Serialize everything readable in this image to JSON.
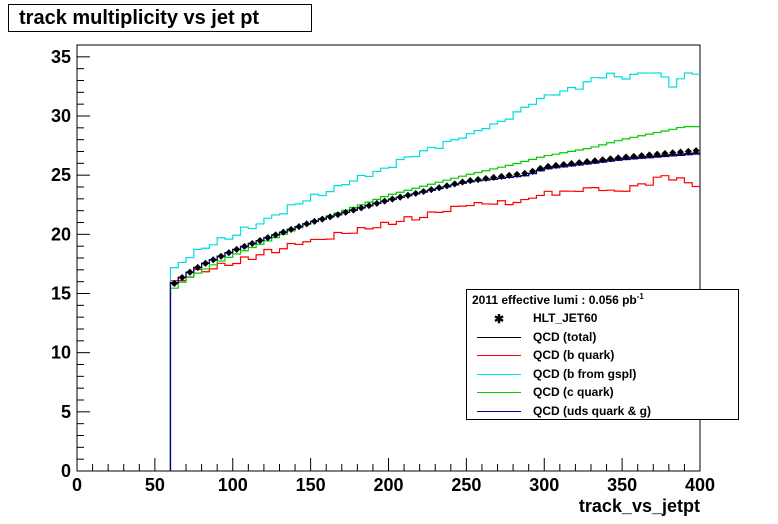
{
  "title": "track multiplicity vs jet pt",
  "chart_data": {
    "type": "line",
    "xlabel": "track_vs_jetpt",
    "xlim": [
      0,
      400
    ],
    "ylim": [
      0,
      36
    ],
    "x_ticks": [
      0,
      50,
      100,
      150,
      200,
      250,
      300,
      350,
      400
    ],
    "y_ticks": [
      0,
      5,
      10,
      15,
      20,
      25,
      30,
      35
    ],
    "bin_width": 5,
    "bin_start": 60,
    "legend": {
      "header": "2011 effective lumi : 0.056  pb",
      "header_sup": "-1",
      "position": "bottom-right"
    },
    "series": [
      {
        "name": "HLT_JET60",
        "style": "marker",
        "color": "#000000",
        "anchors": [
          [
            60,
            15.6
          ],
          [
            70,
            16.6
          ],
          [
            80,
            17.4
          ],
          [
            90,
            18.0
          ],
          [
            100,
            18.6
          ],
          [
            120,
            19.6
          ],
          [
            150,
            21.0
          ],
          [
            200,
            22.9
          ],
          [
            250,
            24.5
          ],
          [
            290,
            25.2
          ],
          [
            300,
            25.7
          ],
          [
            350,
            26.5
          ],
          [
            400,
            27.1
          ]
        ]
      },
      {
        "name": "QCD (total)",
        "style": "line",
        "color": "#000000",
        "anchors": [
          [
            60,
            15.6
          ],
          [
            70,
            16.6
          ],
          [
            80,
            17.4
          ],
          [
            90,
            18.0
          ],
          [
            100,
            18.6
          ],
          [
            120,
            19.6
          ],
          [
            150,
            21.0
          ],
          [
            200,
            22.9
          ],
          [
            250,
            24.4
          ],
          [
            290,
            25.0
          ],
          [
            300,
            25.6
          ],
          [
            350,
            26.4
          ],
          [
            400,
            26.9
          ]
        ]
      },
      {
        "name": "QCD (b quark)",
        "style": "line",
        "color": "#ff0000",
        "anchors": [
          [
            60,
            15.8
          ],
          [
            70,
            16.6
          ],
          [
            80,
            17.1
          ],
          [
            100,
            17.8
          ],
          [
            120,
            18.5
          ],
          [
            150,
            19.6
          ],
          [
            200,
            21.0
          ],
          [
            250,
            22.6
          ],
          [
            270,
            22.9
          ],
          [
            280,
            22.6
          ],
          [
            290,
            23.1
          ],
          [
            300,
            23.5
          ],
          [
            330,
            23.9
          ],
          [
            350,
            23.7
          ],
          [
            370,
            24.6
          ],
          [
            380,
            25.1
          ],
          [
            390,
            24.5
          ],
          [
            400,
            24.2
          ]
        ]
      },
      {
        "name": "QCD (b from gspl)",
        "style": "line",
        "color": "#00dddd",
        "anchors": [
          [
            60,
            17.0
          ],
          [
            70,
            18.2
          ],
          [
            80,
            19.0
          ],
          [
            90,
            19.5
          ],
          [
            100,
            20.1
          ],
          [
            120,
            21.3
          ],
          [
            150,
            23.2
          ],
          [
            200,
            25.8
          ],
          [
            230,
            27.4
          ],
          [
            250,
            28.5
          ],
          [
            270,
            29.4
          ],
          [
            290,
            31.0
          ],
          [
            300,
            31.7
          ],
          [
            320,
            32.4
          ],
          [
            340,
            33.6
          ],
          [
            350,
            33.3
          ],
          [
            360,
            33.7
          ],
          [
            370,
            33.8
          ],
          [
            380,
            33.0
          ],
          [
            385,
            32.5
          ],
          [
            390,
            33.7
          ],
          [
            400,
            33.7
          ]
        ]
      },
      {
        "name": "QCD (c quark)",
        "style": "line",
        "color": "#00cc00",
        "anchors": [
          [
            60,
            15.2
          ],
          [
            70,
            16.2
          ],
          [
            80,
            16.9
          ],
          [
            90,
            17.6
          ],
          [
            100,
            18.2
          ],
          [
            120,
            19.3
          ],
          [
            150,
            21.0
          ],
          [
            200,
            23.3
          ],
          [
            250,
            25.0
          ],
          [
            280,
            25.9
          ],
          [
            300,
            26.6
          ],
          [
            330,
            27.3
          ],
          [
            350,
            28.0
          ],
          [
            380,
            28.8
          ],
          [
            390,
            29.1
          ],
          [
            400,
            29.1
          ]
        ]
      },
      {
        "name": "QCD (uds quark & g)",
        "style": "line",
        "color": "#000099",
        "anchors": [
          [
            60,
            15.7
          ],
          [
            70,
            16.6
          ],
          [
            80,
            17.4
          ],
          [
            90,
            18.0
          ],
          [
            100,
            18.6
          ],
          [
            120,
            19.6
          ],
          [
            150,
            21.0
          ],
          [
            200,
            22.9
          ],
          [
            250,
            24.4
          ],
          [
            290,
            25.0
          ],
          [
            300,
            25.5
          ],
          [
            350,
            26.3
          ],
          [
            400,
            26.8
          ]
        ]
      }
    ]
  }
}
